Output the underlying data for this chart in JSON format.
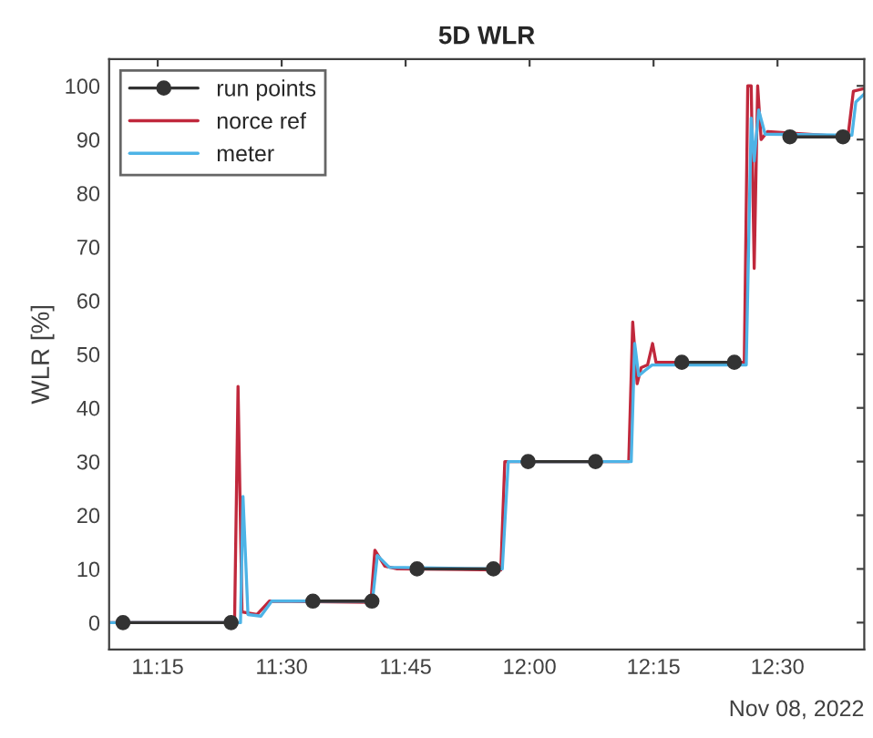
{
  "chart_data": {
    "type": "line",
    "title": "5D WLR",
    "ylabel": "WLR [%]",
    "annotations": [
      "Nov 08, 2022"
    ],
    "xlim": [
      11.152,
      12.675
    ],
    "ylim": [
      -5,
      105
    ],
    "xticks": [
      {
        "value": 11.25,
        "label": "11:15"
      },
      {
        "value": 11.5,
        "label": "11:30"
      },
      {
        "value": 11.75,
        "label": "11:45"
      },
      {
        "value": 12.0,
        "label": "12:00"
      },
      {
        "value": 12.25,
        "label": "12:15"
      },
      {
        "value": 12.5,
        "label": "12:30"
      }
    ],
    "yticks": [
      0,
      10,
      20,
      30,
      40,
      50,
      60,
      70,
      80,
      90,
      100
    ],
    "grid": false,
    "legend": "top left",
    "series": [
      {
        "name": "norce ref",
        "color": "#c0283c",
        "marker": "none",
        "x": [
          11.152,
          11.405,
          11.412,
          11.42,
          11.45,
          11.475,
          11.68,
          11.688,
          11.708,
          11.733,
          11.942,
          11.95,
          12.2,
          12.208,
          12.217,
          12.225,
          12.238,
          12.248,
          12.255,
          12.433,
          12.44,
          12.447,
          12.453,
          12.46,
          12.467,
          12.48,
          12.642,
          12.653,
          12.675
        ],
        "values": [
          0,
          0,
          44,
          2,
          1.5,
          4,
          3.8,
          13.5,
          10.5,
          10,
          9.8,
          30,
          30,
          56,
          44.5,
          47.5,
          48,
          52,
          48.5,
          48.5,
          100,
          100,
          66,
          100,
          90,
          91.5,
          90.5,
          99,
          99.5
        ]
      },
      {
        "name": "meter",
        "color": "#4db3e6",
        "marker": "none",
        "x": [
          11.152,
          11.417,
          11.422,
          11.432,
          11.458,
          11.48,
          11.683,
          11.693,
          11.717,
          11.945,
          11.957,
          12.205,
          12.212,
          12.22,
          12.233,
          12.247,
          12.437,
          12.447,
          12.453,
          12.462,
          12.475,
          12.65,
          12.658,
          12.675
        ],
        "values": [
          0,
          0,
          23.5,
          1.5,
          1.2,
          4,
          4,
          12.5,
          10.3,
          10,
          30,
          30,
          52,
          46,
          47,
          48,
          48,
          94,
          86,
          95.5,
          91,
          90.8,
          97,
          98.5
        ]
      },
      {
        "name": "run points",
        "color": "#333333",
        "marker": "circle",
        "x": [
          11.18,
          11.398,
          11.48,
          11.563,
          11.682,
          11.73,
          11.773,
          11.927,
          11.96,
          11.997,
          12.133,
          12.22,
          12.307,
          12.413,
          12.47,
          12.525,
          12.632
        ],
        "values": [
          0,
          0,
          null,
          4,
          4,
          null,
          10,
          10,
          null,
          30,
          30,
          null,
          48.5,
          48.5,
          null,
          90.5,
          90.5
        ]
      }
    ]
  }
}
